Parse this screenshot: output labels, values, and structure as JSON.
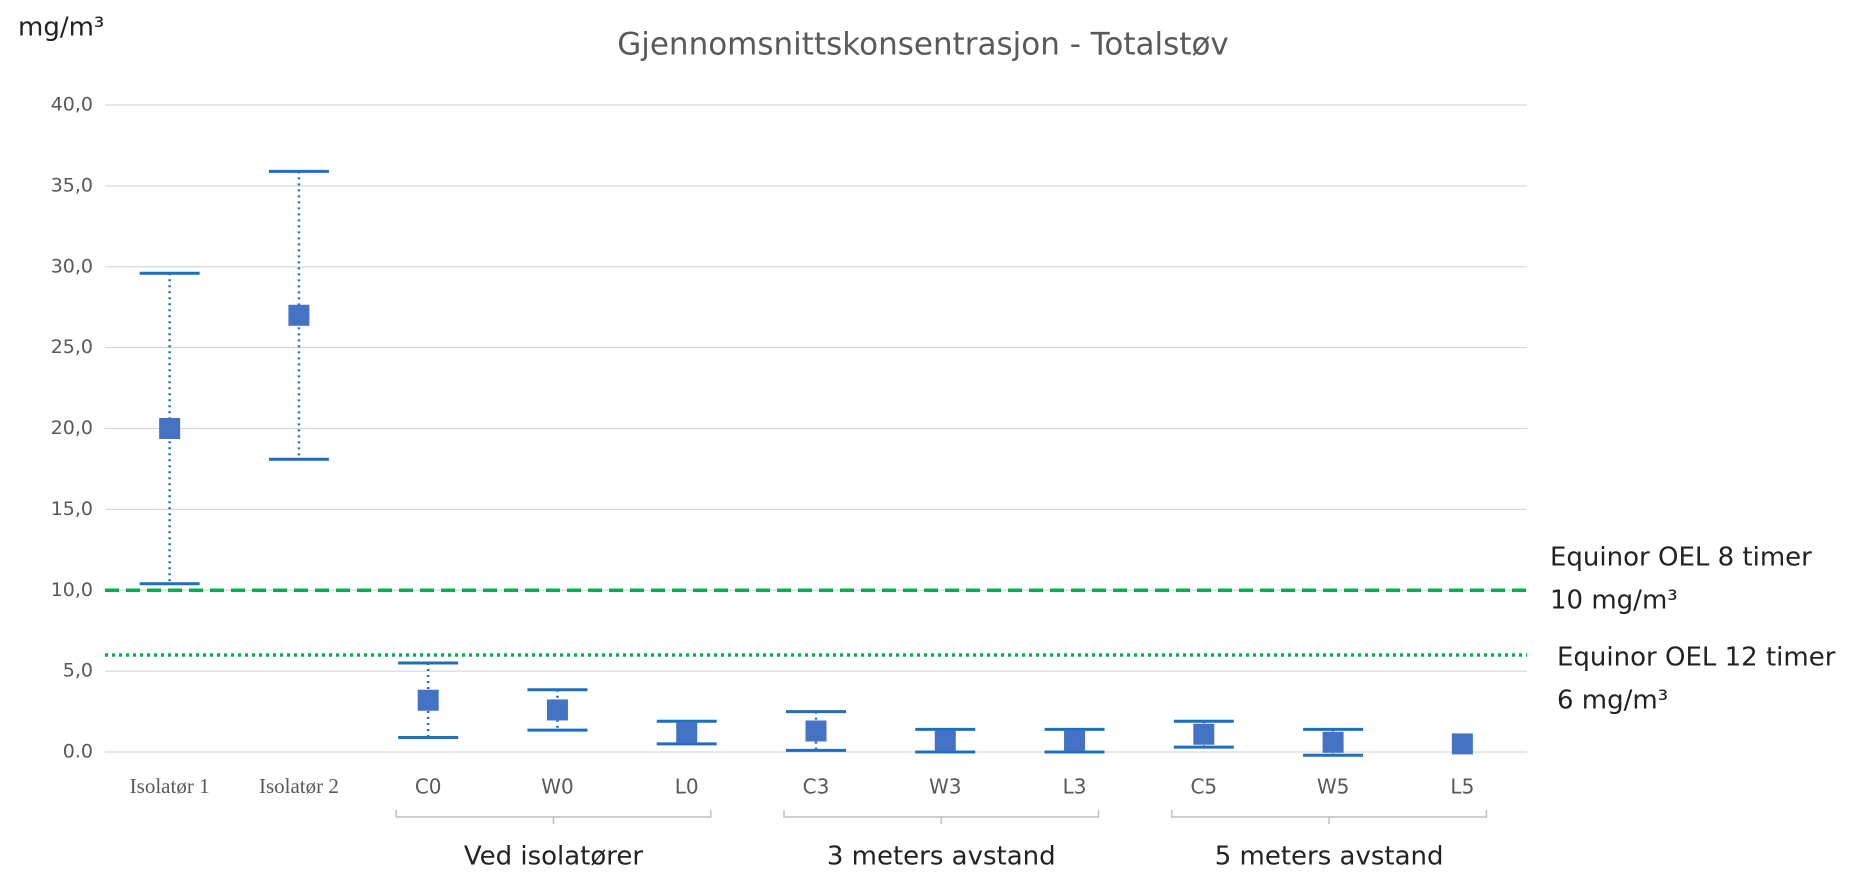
{
  "chart_data": {
    "type": "errorbar",
    "title": "Gjennomsnittskonsentrasjon - Totalstøv",
    "y_label": "mg/m³",
    "categories": [
      "Isolatør 1",
      "Isolatør 2",
      "C0",
      "W0",
      "L0",
      "C3",
      "W3",
      "L3",
      "C5",
      "W5",
      "L5"
    ],
    "values": [
      20.0,
      27.0,
      3.2,
      2.6,
      1.2,
      1.3,
      0.7,
      0.7,
      1.1,
      0.6,
      0.5
    ],
    "errors": [
      9.6,
      8.9,
      2.3,
      1.25,
      0.7,
      1.2,
      0.7,
      0.7,
      0.8,
      0.8,
      null
    ],
    "marker_color": "#4472c4",
    "error_color": "#1f6fbf",
    "groups": [
      "Ved isolatører",
      "3 meters avstand",
      "5 meters avstand"
    ],
    "reference_lines": [
      {
        "value": 10,
        "style": "dashed",
        "color": "#00b050",
        "label": [
          "Equinor OEL 8 timer",
          "10 mg/m³"
        ]
      },
      {
        "value": 6,
        "style": "dotted",
        "color": "#00b050",
        "label": [
          "Equinor OEL 12 timer",
          "6 mg/m³"
        ]
      }
    ],
    "ylim": [
      0,
      40
    ],
    "yticks": [
      {
        "value": 0,
        "label": "0.0"
      },
      {
        "value": 5,
        "label": "5,0"
      },
      {
        "value": 10,
        "label": "10,0"
      },
      {
        "value": 15,
        "label": "15,0"
      },
      {
        "value": 20,
        "label": "20,0"
      },
      {
        "value": 25,
        "label": "25,0"
      },
      {
        "value": 30,
        "label": "30,0"
      },
      {
        "value": 35,
        "label": "35,0"
      },
      {
        "value": 40,
        "label": "40,0"
      }
    ],
    "grid": true
  }
}
